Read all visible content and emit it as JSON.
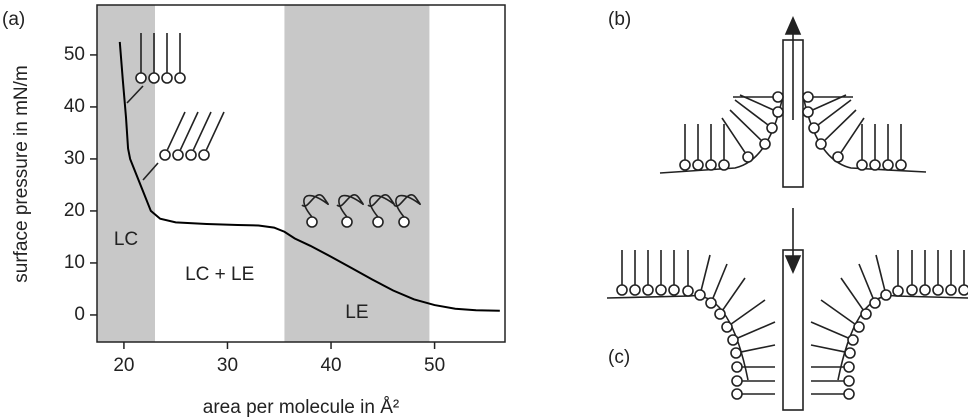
{
  "chart_data": {
    "type": "line",
    "panel_label": "(a)",
    "x_label": "area per molecule in Å²",
    "y_label": "surface pressure in mN/m",
    "xlim": [
      17.4,
      56.8
    ],
    "ylim": [
      -5.2,
      59.6
    ],
    "xticks": [
      20,
      30,
      40,
      50
    ],
    "yticks": [
      0,
      10,
      20,
      30,
      40,
      50
    ],
    "regions": [
      {
        "label": "LC",
        "range": [
          17.4,
          23
        ],
        "shaded": true
      },
      {
        "label": "LC + LE",
        "range": [
          23,
          35.5
        ],
        "shaded": false
      },
      {
        "label": "LE",
        "range": [
          35.5,
          49.5
        ],
        "shaded": true
      }
    ],
    "shade_color": "#c8c8c8",
    "series": [
      {
        "color": "#000000",
        "x": [
          19.6,
          19.9,
          20.2,
          20.4,
          20.6,
          21,
          21.8,
          22.6,
          23.5,
          25,
          28,
          31,
          33,
          34.5,
          35.5,
          36.5,
          38,
          40,
          42,
          44,
          46,
          48,
          50,
          52,
          54,
          56.3
        ],
        "values": [
          52.5,
          45,
          38,
          32,
          30,
          28,
          24,
          20,
          18.5,
          17.8,
          17.5,
          17.3,
          17.2,
          16.8,
          16,
          14.7,
          13.3,
          11.2,
          9,
          6.8,
          4.7,
          3,
          1.9,
          1.2,
          0.9,
          0.8
        ]
      }
    ]
  },
  "diagrams": {
    "b": {
      "label": "(b)"
    },
    "c": {
      "label": "(c)"
    }
  }
}
